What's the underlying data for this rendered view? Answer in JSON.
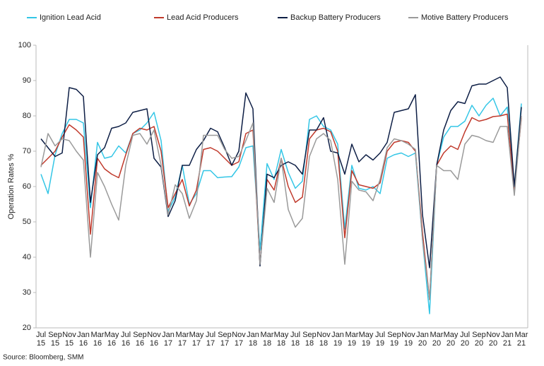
{
  "chart_data": {
    "type": "line",
    "ylabel": "Operation Rates %",
    "source": "Source: Bloomberg, SMM",
    "legend": "top",
    "grid": false,
    "ylim": [
      20,
      100
    ],
    "yticks": [
      20,
      30,
      40,
      50,
      60,
      70,
      80,
      90,
      100
    ],
    "categories": [
      "Jul 15",
      null,
      "Sep 15",
      null,
      "Nov 15",
      null,
      "Jan 16",
      null,
      "Mar 16",
      null,
      "May 16",
      null,
      "Jul 16",
      null,
      "Sep 16",
      null,
      "Nov 16",
      null,
      "Jan 17",
      null,
      "Mar 17",
      null,
      "May 17",
      null,
      "Jul 17",
      null,
      "Sep 17",
      null,
      "Nov 17",
      null,
      "Jan 18",
      null,
      "Mar 18",
      null,
      "May 18",
      null,
      "Jul 18",
      null,
      "Sep 18",
      null,
      "Nov 18",
      null,
      "Jan 19",
      null,
      "Mar 19",
      null,
      "May 19",
      null,
      "Jul 19",
      null,
      "Sep 19",
      null,
      "Nov 19",
      null,
      "Jan 20",
      null,
      "Mar 20",
      null,
      "May 20",
      null,
      "Jul 20",
      null,
      "Sep 20",
      null,
      "Nov 20",
      null,
      "Jan 21",
      null,
      "Mar 21"
    ],
    "series": [
      {
        "name": "Ignition Lead Acid",
        "color": "#33c6e6",
        "values": [
          63.5,
          58,
          69,
          75,
          79,
          79,
          78,
          54,
          72.5,
          68,
          68.5,
          71.5,
          69.5,
          75,
          76,
          78,
          81,
          73,
          53,
          57,
          66,
          55,
          58,
          64.5,
          64.5,
          62.5,
          62.7,
          62.8,
          65.5,
          71,
          71.5,
          42,
          66.5,
          62,
          70.5,
          64,
          59.5,
          61.5,
          79,
          80,
          77,
          76,
          72,
          48,
          66,
          59.5,
          59,
          60,
          58,
          68,
          69,
          69.5,
          68.5,
          69.5,
          45,
          24,
          66,
          74,
          77,
          77,
          78.5,
          83,
          80,
          83,
          85,
          80,
          82.5,
          60,
          83.5
        ]
      },
      {
        "name": "Lead Acid Producers",
        "color": "#c0392b",
        "values": [
          66,
          68,
          70,
          74,
          77.5,
          76,
          74,
          46.5,
          68,
          65,
          63.5,
          62.5,
          69,
          75,
          76.5,
          76,
          77,
          70,
          54,
          58,
          62,
          54.5,
          59,
          70.5,
          71,
          70,
          68,
          66,
          67,
          75,
          76,
          38,
          62,
          59,
          68,
          60,
          55.5,
          57,
          73.5,
          76,
          76.5,
          75.5,
          70,
          45.5,
          64.5,
          60.5,
          60,
          59.5,
          61,
          70,
          72.5,
          73,
          72.5,
          70,
          47,
          28,
          66,
          69.5,
          71.5,
          70.5,
          75.5,
          79.5,
          78.5,
          79,
          79.8,
          80,
          80.5,
          59,
          79.5
        ]
      },
      {
        "name": "Backup Battery Producers",
        "color": "#0d1e45",
        "values": [
          73.5,
          71,
          68.5,
          69.5,
          88,
          87.5,
          85.5,
          55.5,
          69,
          71,
          76.5,
          77,
          78,
          81,
          81.5,
          82,
          68,
          65.5,
          51.5,
          56,
          66,
          66,
          70.5,
          73,
          76.5,
          75.5,
          71,
          66,
          70,
          86.5,
          82,
          37.5,
          63.5,
          62.5,
          66,
          67,
          66,
          63.5,
          76,
          76,
          79.5,
          70,
          69.5,
          63.5,
          72,
          67,
          69,
          67.5,
          69.5,
          72.5,
          81,
          81.5,
          82,
          86,
          52,
          37,
          66,
          76,
          81.5,
          84,
          83.5,
          88.5,
          89,
          89,
          90,
          91,
          88,
          60,
          82.5
        ]
      },
      {
        "name": "Motive Battery Producers",
        "color": "#9a9a9a",
        "values": [
          65.5,
          75,
          71.5,
          73.5,
          73,
          70,
          67.5,
          40,
          64,
          60,
          55,
          50.5,
          66,
          74.5,
          75,
          72,
          76,
          66,
          52,
          60.5,
          58,
          51,
          56,
          74.5,
          74.5,
          74.5,
          70.5,
          68,
          68.5,
          73,
          78,
          38,
          59.5,
          55.5,
          68,
          53.5,
          48.5,
          51,
          68.5,
          73.5,
          75,
          73,
          62,
          38,
          61.5,
          59,
          58.5,
          56,
          62,
          71,
          73.5,
          73,
          72,
          70.5,
          45,
          28,
          66,
          64.5,
          64.5,
          62,
          72,
          74.5,
          74,
          73,
          72.5,
          77,
          77,
          57.5,
          80
        ]
      }
    ]
  }
}
